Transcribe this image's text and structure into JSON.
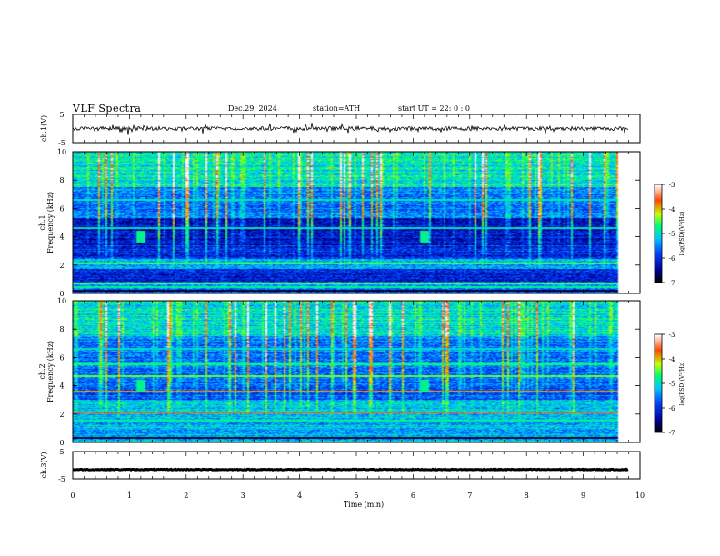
{
  "header": {
    "title": "VLF  Spectra",
    "date": "Dec.29, 2024",
    "station": "station=ATH",
    "start_ut": "start  UT  =    22: 0   : 0"
  },
  "chart_data": [
    {
      "type": "line",
      "name": "ch1-waveform",
      "ylabel": "ch.1(V)",
      "ylim": [
        -5,
        5
      ],
      "y_ticks": [
        "5",
        "-5"
      ],
      "xlim": [
        0,
        10
      ],
      "level": 0
    },
    {
      "type": "heatmap",
      "name": "ch1-spectrogram",
      "ylabel": "ch.1\nFrequency  (kHz)",
      "ylabel_lines": [
        "ch.1",
        "Frequency  (kHz)"
      ],
      "ylim": [
        0,
        10
      ],
      "y_ticks": [
        "0",
        "2",
        "4",
        "6",
        "8",
        "10"
      ],
      "xlim": [
        0,
        10
      ],
      "data_end_min": 9.8,
      "colorbar": {
        "label": "log(PSD)(V²/Hz)",
        "range": [
          -7,
          -3
        ],
        "ticks": [
          "-3",
          "-4",
          "-5",
          "-6",
          "-7"
        ]
      }
    },
    {
      "type": "heatmap",
      "name": "ch2-spectrogram",
      "ylabel": "ch.2\nFrequency  (kHz)",
      "ylabel_lines": [
        "ch.2",
        "Frequency  (kHz)"
      ],
      "ylim": [
        0,
        10
      ],
      "y_ticks": [
        "0",
        "2",
        "4",
        "6",
        "8",
        "10"
      ],
      "xlim": [
        0,
        10
      ],
      "data_end_min": 9.8,
      "colorbar": {
        "label": "log(PSD)(V²/Hz)",
        "range": [
          -7,
          -3
        ],
        "ticks": [
          "-3",
          "-4",
          "-5",
          "-6",
          "-7"
        ]
      }
    },
    {
      "type": "line",
      "name": "ch3-waveform",
      "ylabel": "ch.3(V)",
      "ylim": [
        -5,
        5
      ],
      "y_ticks": [
        "5",
        "-5"
      ],
      "xlim": [
        0,
        10
      ],
      "level": -1.6,
      "x_ticks": [
        "0",
        "1",
        "2",
        "3",
        "4",
        "5",
        "6",
        "7",
        "8",
        "9",
        "10"
      ],
      "xlabel": "Time  (min)"
    }
  ],
  "colors": {
    "background_deep": "#000a6e",
    "background_blue": "#0033cc",
    "colormap": [
      "#000000",
      "#0000aa",
      "#0055ff",
      "#00ccff",
      "#00ff66",
      "#ccff00",
      "#ff4400",
      "#ffffff"
    ]
  }
}
